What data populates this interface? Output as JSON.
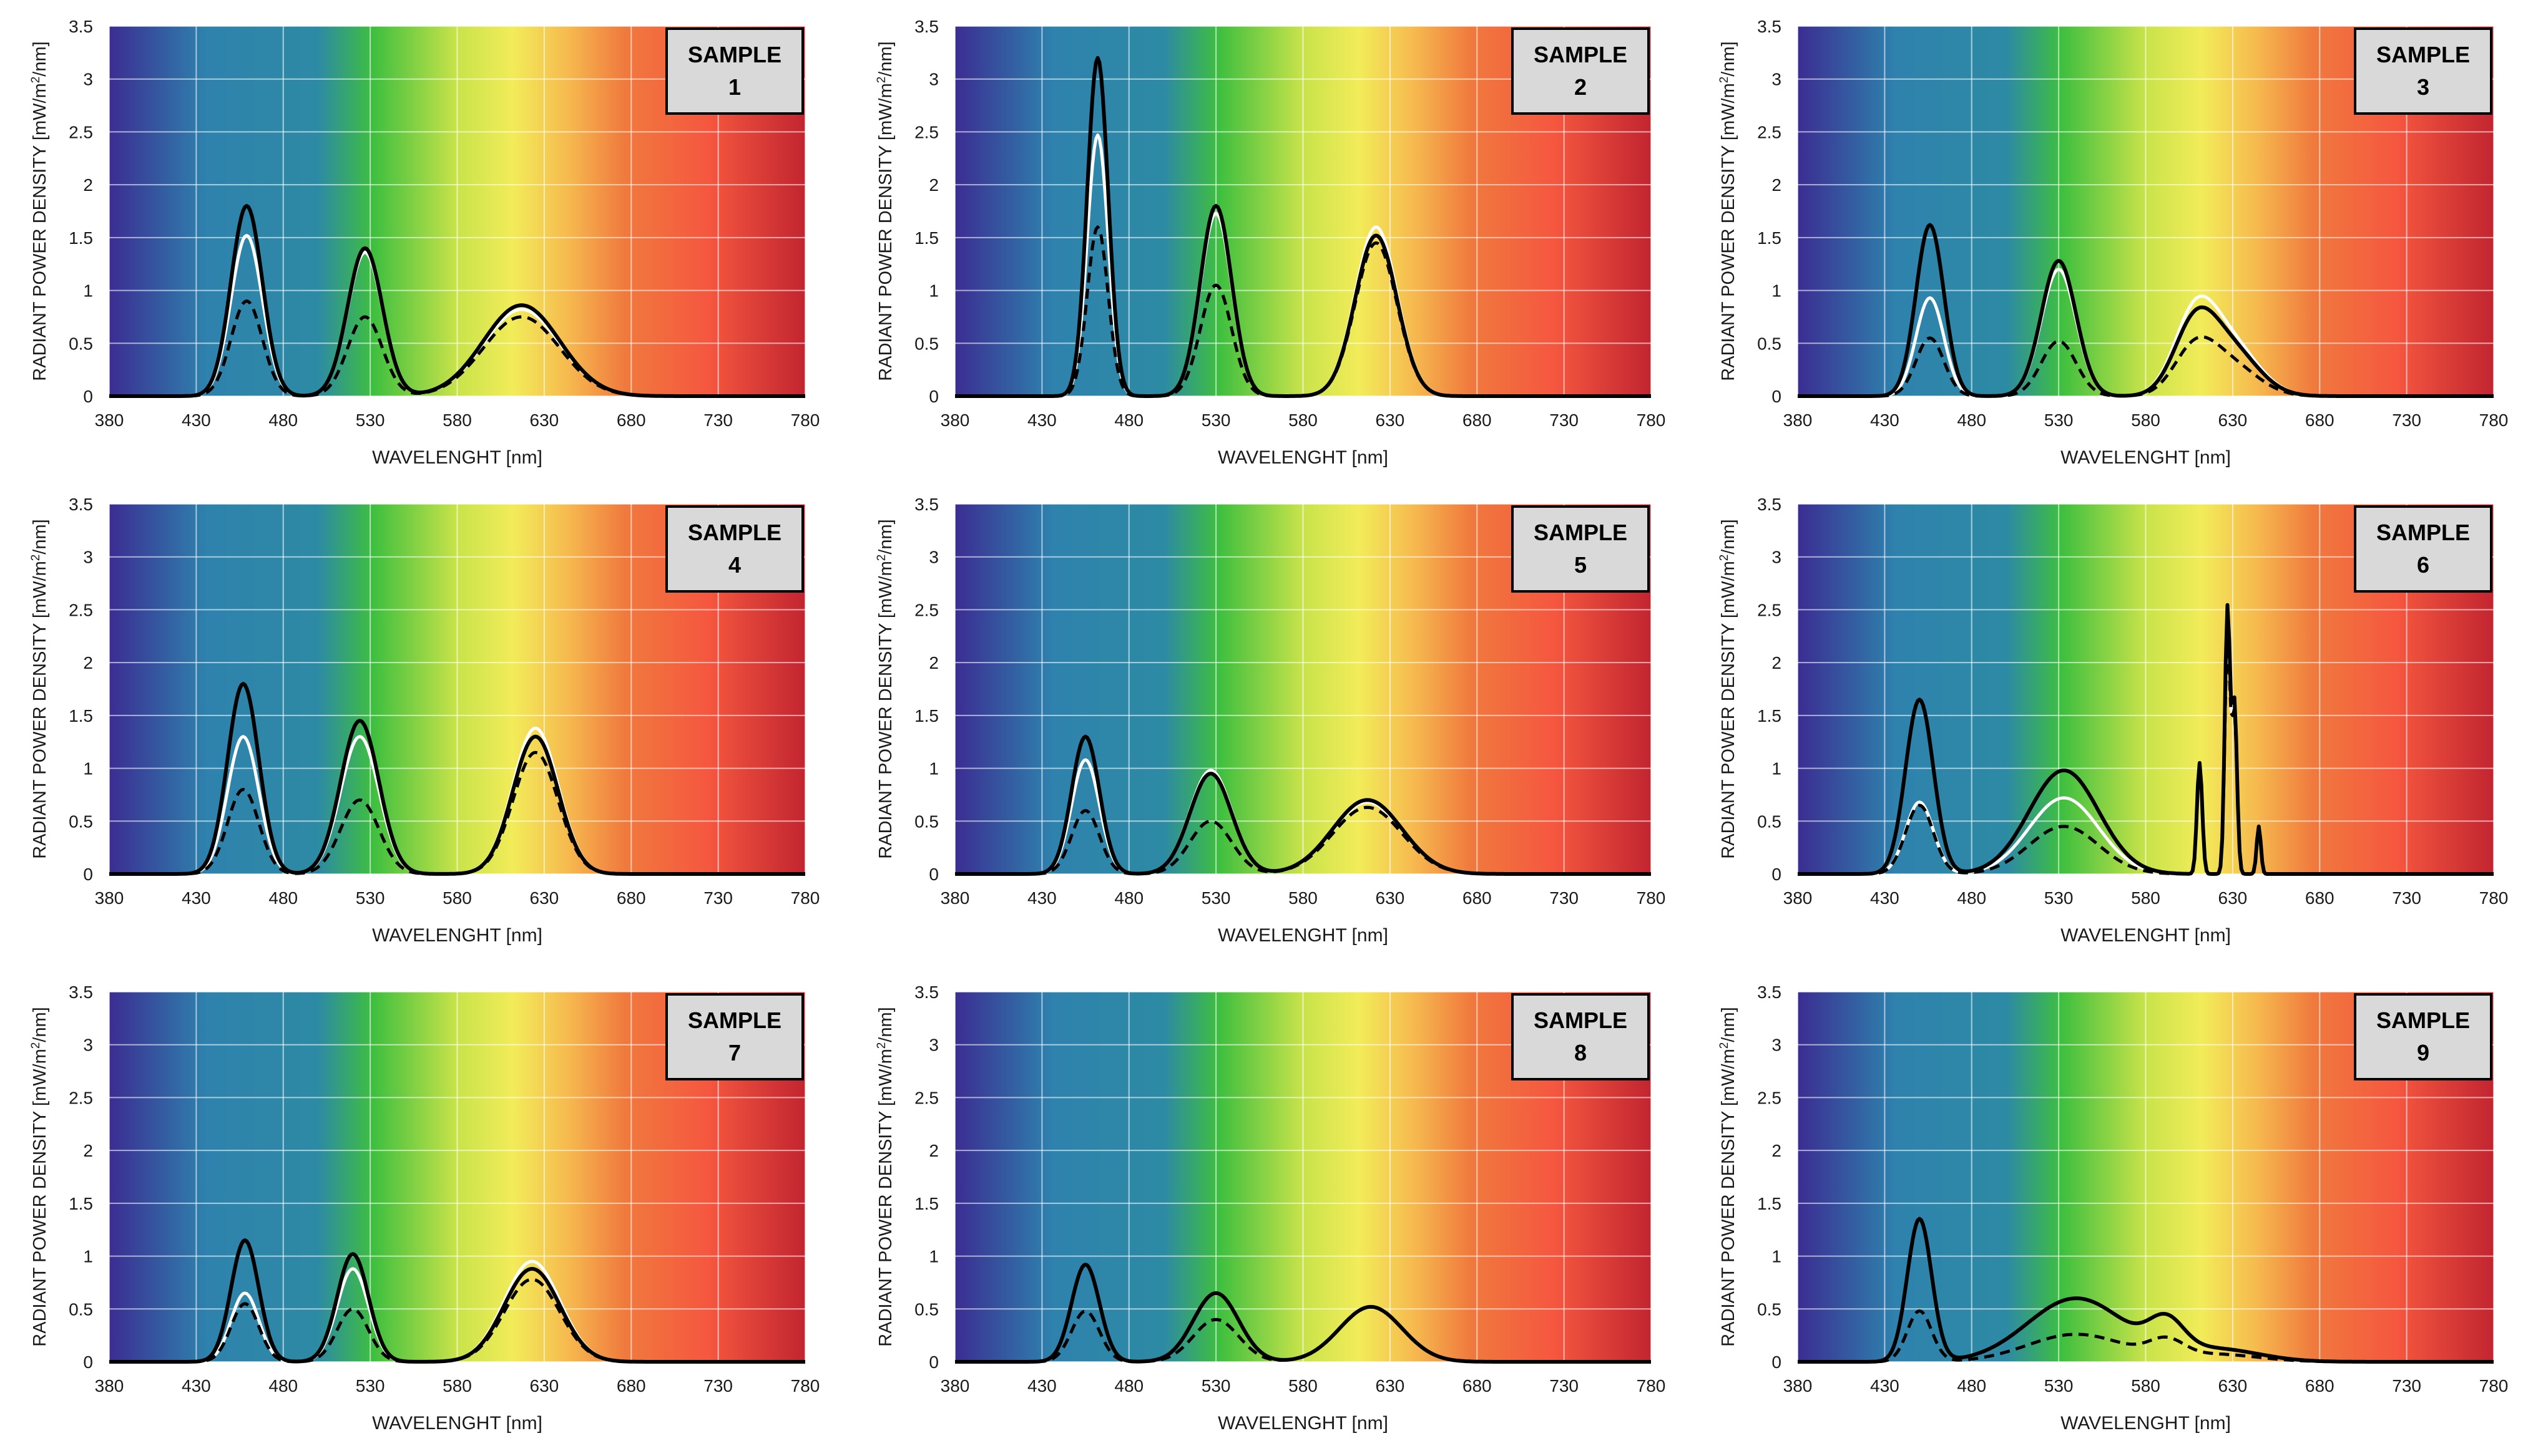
{
  "figure": {
    "xlabel": "WAVELENGHT [nm]",
    "ylabel": "RADIANT POWER DENSITY [mW/m²/nm]",
    "ylabel_main": "RADIANT POWER DENSITY [mW/m",
    "ylabel_sup": "2",
    "ylabel_end": "/nm]",
    "sample_word": "SAMPLE"
  },
  "chart_data": [
    {
      "type": "line",
      "sample_number": "1",
      "x_ticks": [
        380,
        430,
        480,
        530,
        580,
        630,
        680,
        730,
        780
      ],
      "y_ticks": [
        "0",
        "0.5",
        "1",
        "1.5",
        "2",
        "2.5",
        "3",
        "3.5"
      ],
      "xlim": [
        380,
        780
      ],
      "ylim": [
        0,
        3.5
      ],
      "series": [
        {
          "name": "solid-black",
          "peaks": [
            {
              "c": 459,
              "h": 1.8,
              "w": 9
            },
            {
              "c": 527,
              "h": 1.4,
              "w": 10
            },
            {
              "c": 617,
              "h": 0.86,
              "w": 22
            }
          ]
        },
        {
          "name": "solid-white",
          "peaks": [
            {
              "c": 459,
              "h": 1.52,
              "w": 9
            },
            {
              "c": 527,
              "h": 1.36,
              "w": 10
            },
            {
              "c": 617,
              "h": 0.82,
              "w": 22
            }
          ]
        },
        {
          "name": "dashed-black",
          "peaks": [
            {
              "c": 459,
              "h": 0.9,
              "w": 9
            },
            {
              "c": 527,
              "h": 0.75,
              "w": 10
            },
            {
              "c": 617,
              "h": 0.75,
              "w": 22
            }
          ]
        }
      ]
    },
    {
      "type": "line",
      "sample_number": "2",
      "x_ticks": [
        380,
        430,
        480,
        530,
        580,
        630,
        680,
        730,
        780
      ],
      "y_ticks": [
        "0",
        "0.5",
        "1",
        "1.5",
        "2",
        "2.5",
        "3",
        "3.5"
      ],
      "xlim": [
        380,
        780
      ],
      "ylim": [
        0,
        3.5
      ],
      "series": [
        {
          "name": "solid-black",
          "peaks": [
            {
              "c": 462,
              "h": 3.2,
              "w": 6
            },
            {
              "c": 530,
              "h": 1.8,
              "w": 9
            },
            {
              "c": 622,
              "h": 1.52,
              "w": 12
            }
          ]
        },
        {
          "name": "solid-white",
          "peaks": [
            {
              "c": 462,
              "h": 2.47,
              "w": 6
            },
            {
              "c": 530,
              "h": 1.73,
              "w": 9
            },
            {
              "c": 622,
              "h": 1.6,
              "w": 12
            }
          ]
        },
        {
          "name": "dashed-black",
          "peaks": [
            {
              "c": 462,
              "h": 1.6,
              "w": 6
            },
            {
              "c": 530,
              "h": 1.05,
              "w": 9
            },
            {
              "c": 622,
              "h": 1.45,
              "w": 12
            }
          ]
        }
      ]
    },
    {
      "type": "line",
      "sample_number": "3",
      "x_ticks": [
        380,
        430,
        480,
        530,
        580,
        630,
        680,
        730,
        780
      ],
      "y_ticks": [
        "0",
        "0.5",
        "1",
        "1.5",
        "2",
        "2.5",
        "3",
        "3.5"
      ],
      "xlim": [
        380,
        780
      ],
      "ylim": [
        0,
        3.5
      ],
      "series": [
        {
          "name": "solid-black",
          "peaks": [
            {
              "c": 456,
              "h": 1.62,
              "w": 8
            },
            {
              "c": 530,
              "h": 1.28,
              "w": 10
            },
            {
              "c": 608,
              "h": 0.6,
              "w": 12
            },
            {
              "c": 628,
              "h": 0.45,
              "w": 16
            }
          ]
        },
        {
          "name": "solid-white",
          "peaks": [
            {
              "c": 456,
              "h": 0.93,
              "w": 8
            },
            {
              "c": 530,
              "h": 1.2,
              "w": 10
            },
            {
              "c": 608,
              "h": 0.68,
              "w": 12
            },
            {
              "c": 628,
              "h": 0.5,
              "w": 16
            }
          ]
        },
        {
          "name": "dashed-black",
          "peaks": [
            {
              "c": 456,
              "h": 0.55,
              "w": 8
            },
            {
              "c": 530,
              "h": 0.52,
              "w": 10
            },
            {
              "c": 608,
              "h": 0.4,
              "w": 12
            },
            {
              "c": 628,
              "h": 0.3,
              "w": 16
            }
          ]
        }
      ]
    },
    {
      "type": "line",
      "sample_number": "4",
      "x_ticks": [
        380,
        430,
        480,
        530,
        580,
        630,
        680,
        730,
        780
      ],
      "y_ticks": [
        "0",
        "0.5",
        "1",
        "1.5",
        "2",
        "2.5",
        "3",
        "3.5"
      ],
      "xlim": [
        380,
        780
      ],
      "ylim": [
        0,
        3.5
      ],
      "series": [
        {
          "name": "solid-black",
          "peaks": [
            {
              "c": 457,
              "h": 1.8,
              "w": 9
            },
            {
              "c": 524,
              "h": 1.45,
              "w": 11
            },
            {
              "c": 625,
              "h": 1.3,
              "w": 13
            }
          ]
        },
        {
          "name": "solid-white",
          "peaks": [
            {
              "c": 457,
              "h": 1.3,
              "w": 9
            },
            {
              "c": 524,
              "h": 1.3,
              "w": 11
            },
            {
              "c": 625,
              "h": 1.38,
              "w": 13
            }
          ]
        },
        {
          "name": "dashed-black",
          "peaks": [
            {
              "c": 457,
              "h": 0.8,
              "w": 9
            },
            {
              "c": 524,
              "h": 0.7,
              "w": 11
            },
            {
              "c": 625,
              "h": 1.15,
              "w": 13
            }
          ]
        }
      ]
    },
    {
      "type": "line",
      "sample_number": "5",
      "x_ticks": [
        380,
        430,
        480,
        530,
        580,
        630,
        680,
        730,
        780
      ],
      "y_ticks": [
        "0",
        "0.5",
        "1",
        "1.5",
        "2",
        "2.5",
        "3",
        "3.5"
      ],
      "xlim": [
        380,
        780
      ],
      "ylim": [
        0,
        3.5
      ],
      "series": [
        {
          "name": "solid-black",
          "peaks": [
            {
              "c": 455,
              "h": 1.3,
              "w": 8
            },
            {
              "c": 527,
              "h": 0.95,
              "w": 12
            },
            {
              "c": 617,
              "h": 0.7,
              "w": 20
            }
          ]
        },
        {
          "name": "solid-white",
          "peaks": [
            {
              "c": 455,
              "h": 1.08,
              "w": 8
            },
            {
              "c": 527,
              "h": 0.98,
              "w": 12
            },
            {
              "c": 617,
              "h": 0.68,
              "w": 20
            }
          ]
        },
        {
          "name": "dashed-black",
          "peaks": [
            {
              "c": 455,
              "h": 0.6,
              "w": 8
            },
            {
              "c": 527,
              "h": 0.5,
              "w": 12
            },
            {
              "c": 617,
              "h": 0.63,
              "w": 20
            }
          ]
        }
      ]
    },
    {
      "type": "line",
      "sample_number": "6",
      "x_ticks": [
        380,
        430,
        480,
        530,
        580,
        630,
        680,
        730,
        780
      ],
      "y_ticks": [
        "0",
        "0.5",
        "1",
        "1.5",
        "2",
        "2.5",
        "3",
        "3.5"
      ],
      "xlim": [
        380,
        780
      ],
      "ylim": [
        0,
        3.5
      ],
      "series": [
        {
          "name": "solid-black",
          "peaks": [
            {
              "c": 450,
              "h": 1.65,
              "w": 8
            },
            {
              "c": 533,
              "h": 0.98,
              "w": 20
            },
            {
              "c": 611,
              "h": 1.05,
              "w": 1.5
            },
            {
              "c": 627,
              "h": 2.5,
              "w": 1.5
            },
            {
              "c": 631,
              "h": 1.6,
              "w": 1.5
            },
            {
              "c": 645,
              "h": 0.45,
              "w": 1.2
            }
          ]
        },
        {
          "name": "solid-white",
          "peaks": [
            {
              "c": 450,
              "h": 0.68,
              "w": 8
            },
            {
              "c": 533,
              "h": 0.72,
              "w": 20
            },
            {
              "c": 611,
              "h": 1.0,
              "w": 1.5
            },
            {
              "c": 627,
              "h": 2.3,
              "w": 1.5
            },
            {
              "c": 631,
              "h": 1.5,
              "w": 1.5
            },
            {
              "c": 645,
              "h": 0.4,
              "w": 1.2
            }
          ]
        },
        {
          "name": "dashed-black",
          "peaks": [
            {
              "c": 450,
              "h": 0.65,
              "w": 8
            },
            {
              "c": 533,
              "h": 0.45,
              "w": 20
            },
            {
              "c": 611,
              "h": 1.0,
              "w": 1.5
            },
            {
              "c": 627,
              "h": 2.2,
              "w": 1.5
            },
            {
              "c": 631,
              "h": 1.5,
              "w": 1.5
            },
            {
              "c": 645,
              "h": 0.4,
              "w": 1.2
            }
          ]
        }
      ]
    },
    {
      "type": "line",
      "sample_number": "7",
      "x_ticks": [
        380,
        430,
        480,
        530,
        580,
        630,
        680,
        730,
        780
      ],
      "y_ticks": [
        "0",
        "0.5",
        "1",
        "1.5",
        "2",
        "2.5",
        "3",
        "3.5"
      ],
      "xlim": [
        380,
        780
      ],
      "ylim": [
        0,
        3.5
      ],
      "series": [
        {
          "name": "solid-black",
          "peaks": [
            {
              "c": 458,
              "h": 1.15,
              "w": 8
            },
            {
              "c": 520,
              "h": 1.02,
              "w": 9
            },
            {
              "c": 623,
              "h": 0.88,
              "w": 16
            }
          ]
        },
        {
          "name": "solid-white",
          "peaks": [
            {
              "c": 458,
              "h": 0.65,
              "w": 8
            },
            {
              "c": 520,
              "h": 0.88,
              "w": 9
            },
            {
              "c": 623,
              "h": 0.95,
              "w": 16
            }
          ]
        },
        {
          "name": "dashed-black",
          "peaks": [
            {
              "c": 458,
              "h": 0.55,
              "w": 8
            },
            {
              "c": 520,
              "h": 0.5,
              "w": 9
            },
            {
              "c": 623,
              "h": 0.78,
              "w": 16
            }
          ]
        }
      ]
    },
    {
      "type": "line",
      "sample_number": "8",
      "x_ticks": [
        380,
        430,
        480,
        530,
        580,
        630,
        680,
        730,
        780
      ],
      "y_ticks": [
        "0",
        "0.5",
        "1",
        "1.5",
        "2",
        "2.5",
        "3",
        "3.5"
      ],
      "xlim": [
        380,
        780
      ],
      "ylim": [
        0,
        3.5
      ],
      "series": [
        {
          "name": "solid-black",
          "peaks": [
            {
              "c": 455,
              "h": 0.92,
              "w": 8
            },
            {
              "c": 530,
              "h": 0.65,
              "w": 13
            },
            {
              "c": 619,
              "h": 0.52,
              "w": 18
            }
          ]
        },
        {
          "name": "solid-white",
          "peaks": [
            {
              "c": 455,
              "h": 0.0,
              "w": 8
            },
            {
              "c": 530,
              "h": 0.0,
              "w": 13
            },
            {
              "c": 619,
              "h": 0.0,
              "w": 18
            }
          ]
        },
        {
          "name": "dashed-black",
          "peaks": [
            {
              "c": 455,
              "h": 0.48,
              "w": 8
            },
            {
              "c": 530,
              "h": 0.4,
              "w": 13
            },
            {
              "c": 619,
              "h": 0.52,
              "w": 18
            }
          ]
        }
      ]
    },
    {
      "type": "line",
      "sample_number": "9",
      "x_ticks": [
        380,
        430,
        480,
        530,
        580,
        630,
        680,
        730,
        780
      ],
      "y_ticks": [
        "0",
        "0.5",
        "1",
        "1.5",
        "2",
        "2.5",
        "3",
        "3.5"
      ],
      "xlim": [
        380,
        780
      ],
      "ylim": [
        0,
        3.5
      ],
      "series": [
        {
          "name": "solid-black",
          "peaks": [
            {
              "c": 450,
              "h": 1.35,
              "w": 7
            },
            {
              "c": 540,
              "h": 0.6,
              "w": 28
            },
            {
              "c": 592,
              "h": 0.28,
              "w": 10
            },
            {
              "c": 620,
              "h": 0.12,
              "w": 25
            }
          ]
        },
        {
          "name": "solid-white",
          "peaks": [
            {
              "c": 450,
              "h": 0.0,
              "w": 7
            }
          ]
        },
        {
          "name": "dashed-black",
          "peaks": [
            {
              "c": 450,
              "h": 0.48,
              "w": 7
            },
            {
              "c": 540,
              "h": 0.26,
              "w": 28
            },
            {
              "c": 592,
              "h": 0.15,
              "w": 10
            },
            {
              "c": 620,
              "h": 0.07,
              "w": 25
            }
          ]
        }
      ]
    }
  ],
  "colors": {
    "spectrum": [
      "#3b2d92",
      "#2e82ad",
      "#2d8aa4",
      "#3fbf3f",
      "#c9e34a",
      "#f2ec59",
      "#f6b94f",
      "#f07a3e",
      "#f5573f",
      "#c22530"
    ],
    "grid": "#ffffffcc",
    "label_box": "#d9d9d9",
    "text": "#1a1a1a"
  }
}
